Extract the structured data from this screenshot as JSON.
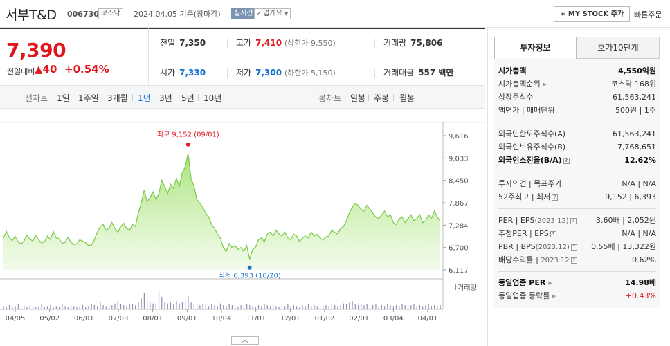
{
  "header": {
    "stock_name": "서부T&D",
    "stock_code": "006730",
    "market": "코스닥",
    "date_text": "2024.04.05  기준(장마감)",
    "realtime_label": "실시간",
    "company_label": "기업개요",
    "mystock_label": "+ MY STOCK 추가",
    "quick_order_label": "빠른주문"
  },
  "price": {
    "current": "7,390",
    "prev_label": "전일대비",
    "change_amt": "▲40",
    "change_pct": "+0.54%",
    "color_up": "#e1171d"
  },
  "quote": {
    "prev_close_label": "전일",
    "prev_close": "7,350",
    "high_label": "고가",
    "high": "7,410",
    "upper_limit": "(상한가 9,550)",
    "volume_label": "거래량",
    "volume": "75,806",
    "open_label": "시가",
    "open": "7,330",
    "low_label": "저가",
    "low": "7,300",
    "lower_limit": "(하한가 5,150)",
    "amount_label": "거래대금",
    "amount": "557 백만"
  },
  "period_bar": {
    "line_label": "선차트",
    "line_items": [
      "1일",
      "1주일",
      "3개월",
      "1년",
      "3년",
      "5년",
      "10년"
    ],
    "active_item": "1년",
    "candle_label": "봉차트",
    "candle_items": [
      "일봉",
      "주봉",
      "월봉"
    ]
  },
  "chart_data": {
    "type": "area",
    "y_ticks": [
      "9,616",
      "9,033",
      "8,450",
      "7,867",
      "7,284",
      "6,700",
      "6,117"
    ],
    "ylim": [
      6117,
      9616
    ],
    "x_ticks": [
      "04/05",
      "05/02",
      "06/01",
      "07/03",
      "08/01",
      "09/01",
      "10/04",
      "11/01",
      "12/01",
      "01/02",
      "02/01",
      "03/04",
      "04/01"
    ],
    "high_label": "최고 9,152 (09/01)",
    "low_label": "최저 6,393 (10/20)",
    "volume_label": "거래량",
    "line_color": "#7fcc4f",
    "values": [
      6950,
      7120,
      6960,
      6880,
      6990,
      6850,
      6790,
      6870,
      7020,
      6920,
      6870,
      7010,
      6900,
      6820,
      6850,
      7000,
      6910,
      7120,
      6950,
      6930,
      6810,
      6830,
      6960,
      6840,
      6780,
      6790,
      6900,
      6870,
      6830,
      6750,
      6760,
      6900,
      7100,
      7250,
      7300,
      7150,
      7210,
      7350,
      7200,
      7100,
      7250,
      7330,
      7200,
      7150,
      7300,
      7250,
      7600,
      7850,
      8200,
      7900,
      8000,
      8150,
      7950,
      8100,
      8450,
      8300,
      8100,
      8350,
      8250,
      8500,
      8300,
      8650,
      8800,
      9152,
      8500,
      8300,
      7950,
      7850,
      7750,
      7600,
      7500,
      7300,
      7200,
      7050,
      6950,
      6700,
      6600,
      6800,
      6700,
      6750,
      6650,
      6700,
      6600,
      6750,
      6393,
      6650,
      6700,
      6900,
      6950,
      6850,
      7050,
      7100,
      7000,
      7150,
      7050,
      7000,
      7100,
      6950,
      6900,
      7050,
      7000,
      6850,
      6950,
      7000,
      6950,
      7100,
      7000,
      7050,
      6950,
      6900,
      6980,
      7000,
      7150,
      7100,
      7050,
      7200,
      7250,
      7400,
      7600,
      7750,
      7850,
      7800,
      7700,
      7650,
      7800,
      7700,
      7600,
      7500,
      7450,
      7550,
      7650,
      7500,
      7550,
      7350,
      7300,
      7450,
      7500,
      7350,
      7450,
      7550,
      7400,
      7450,
      7550,
      7350,
      7400,
      7550,
      7450,
      7650,
      7500,
      7390
    ],
    "volumes": [
      3,
      2,
      4,
      2,
      3,
      5,
      2,
      3,
      2,
      4,
      3,
      2,
      3,
      6,
      2,
      3,
      4,
      2,
      3,
      2,
      5,
      3,
      2,
      4,
      3,
      2,
      3,
      4,
      2,
      3,
      5,
      4,
      3,
      8,
      4,
      3,
      5,
      4,
      6,
      9,
      5,
      4,
      3,
      6,
      5,
      4,
      7,
      12,
      18,
      9,
      7,
      6,
      5,
      22,
      14,
      8,
      6,
      7,
      5,
      9,
      6,
      8,
      11,
      15,
      7,
      5,
      6,
      4,
      5,
      4,
      3,
      5,
      4,
      3,
      6,
      4,
      3,
      5,
      4,
      3,
      2,
      4,
      3,
      5,
      4,
      3,
      2,
      4,
      3,
      5,
      4,
      3,
      4,
      3,
      2,
      4,
      3,
      5,
      3,
      4,
      3,
      2,
      4,
      3,
      5,
      3,
      4,
      3,
      2,
      3,
      4,
      3,
      5,
      4,
      3,
      4,
      6,
      5,
      7,
      9,
      5,
      4,
      6,
      4,
      5,
      3,
      4,
      5,
      3,
      4,
      3,
      5,
      4,
      3,
      4,
      3,
      5,
      4,
      3,
      4,
      5,
      3,
      4,
      3,
      4,
      5,
      3,
      4,
      3,
      4
    ]
  },
  "invest_info": {
    "tab_invest": "투자정보",
    "tab_hoga": "호가10단계",
    "market_cap_label": "시가총액",
    "market_cap": "4,550억원",
    "cap_rank_label": "시가총액순위",
    "cap_rank": "코스닥 168위",
    "shares_label": "상장주식수",
    "shares": "61,563,241",
    "par_label": "액면가 | 매매단위",
    "par": "500원",
    "unit": "1주",
    "foreign_limit_label": "외국인한도주식수(A)",
    "foreign_limit": "61,563,241",
    "foreign_hold_label": "외국인보유주식수(B)",
    "foreign_hold": "7,768,651",
    "foreign_rate_label": "외국인소진율(B/A)",
    "foreign_rate": "12.62%",
    "opinion_label": "투자의견 | 목표주가",
    "opinion": "N/A",
    "target": "N/A",
    "week52_label": "52주최고 | 최저",
    "week52_high": "9,152",
    "week52_low": "6,393",
    "per_label": "PER | EPS",
    "per_year": "(2023.12)",
    "per": "3.60배",
    "eps": "2,052원",
    "est_per_label": "추정PER | EPS",
    "est_per": "N/A",
    "est_eps": "N/A",
    "pbr_label": "PBR | BPS",
    "pbr_year": "(2023.12)",
    "pbr": "0.55배",
    "bps": "13,322원",
    "div_label": "배당수익률",
    "div_year": "2023.12",
    "div": "0.62%",
    "sector_per_label": "동일업종 PER",
    "sector_per": "14.98배",
    "sector_rate_label": "동일업종 등락률",
    "sector_rate": "+0.43%"
  }
}
